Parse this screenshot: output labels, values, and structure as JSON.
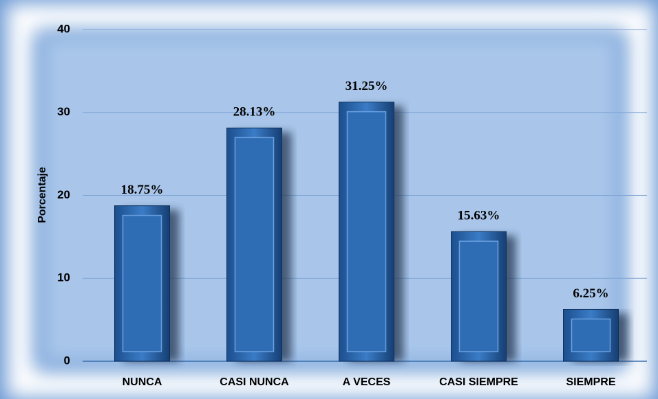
{
  "chart_data": {
    "type": "bar",
    "y_label": "Porcentaje",
    "categories": [
      "NUNCA",
      "CASI NUNCA",
      "A VECES",
      "CASI SIEMPRE",
      "SIEMPRE"
    ],
    "values": [
      18.75,
      28.13,
      31.25,
      15.63,
      6.25
    ],
    "value_labels": [
      "18.75%",
      "28.13%",
      "31.25%",
      "15.63%",
      "6.25%"
    ],
    "color": "#2e6db4",
    "ylim": [
      0,
      40
    ],
    "yticks": [
      0,
      10,
      20,
      30,
      40
    ],
    "grid": true
  }
}
